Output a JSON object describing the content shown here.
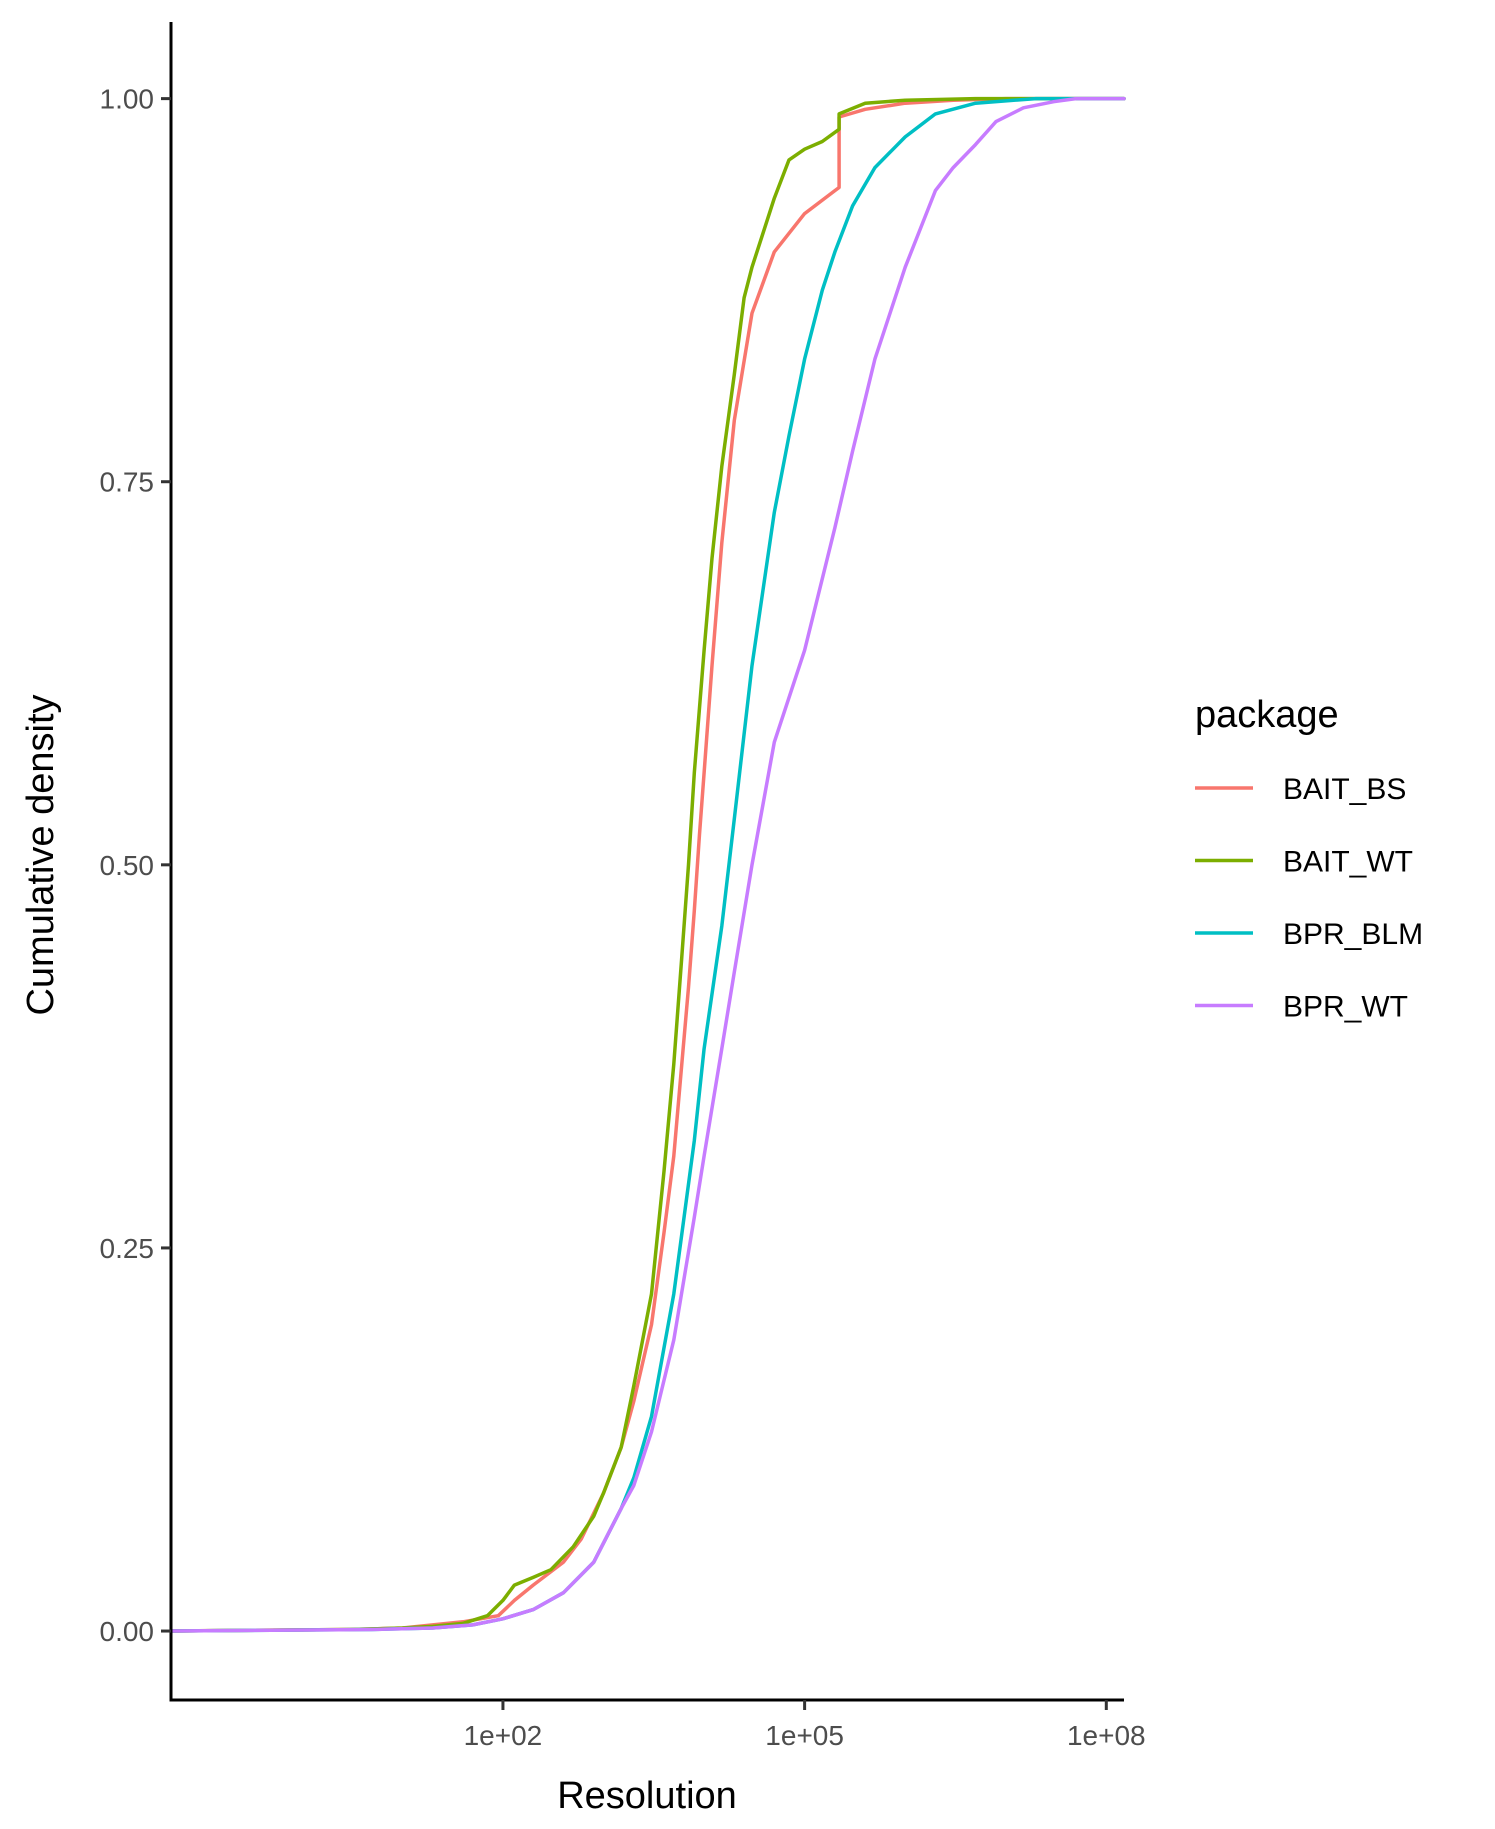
{
  "chart_data": {
    "type": "line",
    "xlabel": "Resolution",
    "ylabel": "Cumulative density",
    "x_scale": "log10",
    "xlim": [
      0.05,
      150000000
    ],
    "ylim": [
      -0.045,
      1.05
    ],
    "x_ticks": [
      {
        "value": 100,
        "label": "1e+02"
      },
      {
        "value": 100000,
        "label": "1e+05"
      },
      {
        "value": 100000000,
        "label": "1e+08"
      }
    ],
    "y_ticks": [
      {
        "value": 0,
        "label": "0.00"
      },
      {
        "value": 0.25,
        "label": "0.25"
      },
      {
        "value": 0.5,
        "label": "0.50"
      },
      {
        "value": 0.75,
        "label": "0.75"
      },
      {
        "value": 1,
        "label": "1.00"
      }
    ],
    "grid": false,
    "legend": {
      "title": "package",
      "position": "right"
    },
    "series": [
      {
        "name": "BAIT_BS",
        "color": "#F8766D",
        "points": [
          [
            0.05,
            0
          ],
          [
            3,
            0.001
          ],
          [
            10,
            0.002
          ],
          [
            20,
            0.004
          ],
          [
            40,
            0.006
          ],
          [
            60,
            0.008
          ],
          [
            90,
            0.01
          ],
          [
            130,
            0.02
          ],
          [
            200,
            0.03
          ],
          [
            400,
            0.045
          ],
          [
            600,
            0.06
          ],
          [
            1000,
            0.09
          ],
          [
            1500,
            0.12
          ],
          [
            2000,
            0.15
          ],
          [
            3000,
            0.2
          ],
          [
            4000,
            0.26
          ],
          [
            5000,
            0.31
          ],
          [
            6000,
            0.37
          ],
          [
            7000,
            0.42
          ],
          [
            8000,
            0.47
          ],
          [
            9000,
            0.52
          ],
          [
            10000,
            0.56
          ],
          [
            12000,
            0.63
          ],
          [
            15000,
            0.71
          ],
          [
            20000,
            0.79
          ],
          [
            30000,
            0.86
          ],
          [
            50000,
            0.9
          ],
          [
            100000,
            0.925
          ],
          [
            200000,
            0.94
          ],
          [
            220000,
            0.942
          ],
          [
            220001,
            0.988
          ],
          [
            400000,
            0.993
          ],
          [
            1000000,
            0.997
          ],
          [
            3000000,
            0.999
          ],
          [
            10000000,
            1
          ],
          [
            150000000,
            1
          ]
        ]
      },
      {
        "name": "BAIT_WT",
        "color": "#7CAE00",
        "points": [
          [
            0.05,
            0
          ],
          [
            3,
            0.001
          ],
          [
            10,
            0.002
          ],
          [
            20,
            0.003
          ],
          [
            40,
            0.005
          ],
          [
            70,
            0.01
          ],
          [
            100,
            0.02
          ],
          [
            130,
            0.03
          ],
          [
            200,
            0.035
          ],
          [
            300,
            0.04
          ],
          [
            500,
            0.055
          ],
          [
            800,
            0.075
          ],
          [
            1000,
            0.09
          ],
          [
            1500,
            0.12
          ],
          [
            2000,
            0.16
          ],
          [
            3000,
            0.22
          ],
          [
            4000,
            0.3
          ],
          [
            5000,
            0.37
          ],
          [
            6000,
            0.44
          ],
          [
            7000,
            0.5
          ],
          [
            8000,
            0.56
          ],
          [
            10000,
            0.64
          ],
          [
            12000,
            0.7
          ],
          [
            15000,
            0.76
          ],
          [
            20000,
            0.82
          ],
          [
            25000,
            0.87
          ],
          [
            30000,
            0.89
          ],
          [
            50000,
            0.935
          ],
          [
            70000,
            0.96
          ],
          [
            100000,
            0.967
          ],
          [
            150000,
            0.972
          ],
          [
            220000,
            0.98
          ],
          [
            220001,
            0.99
          ],
          [
            400000,
            0.997
          ],
          [
            1000000,
            0.999
          ],
          [
            5000000,
            1
          ],
          [
            150000000,
            1
          ]
        ]
      },
      {
        "name": "BPR_BLM",
        "color": "#00BFC4",
        "points": [
          [
            0.05,
            0
          ],
          [
            5,
            0.001
          ],
          [
            20,
            0.002
          ],
          [
            50,
            0.004
          ],
          [
            100,
            0.008
          ],
          [
            200,
            0.014
          ],
          [
            400,
            0.025
          ],
          [
            800,
            0.045
          ],
          [
            1500,
            0.08
          ],
          [
            2000,
            0.1
          ],
          [
            3000,
            0.14
          ],
          [
            5000,
            0.22
          ],
          [
            8000,
            0.32
          ],
          [
            10000,
            0.38
          ],
          [
            15000,
            0.46
          ],
          [
            20000,
            0.53
          ],
          [
            30000,
            0.63
          ],
          [
            50000,
            0.73
          ],
          [
            70000,
            0.78
          ],
          [
            100000,
            0.83
          ],
          [
            150000,
            0.875
          ],
          [
            200000,
            0.9
          ],
          [
            300000,
            0.93
          ],
          [
            500000,
            0.955
          ],
          [
            1000000,
            0.975
          ],
          [
            2000000,
            0.99
          ],
          [
            5000000,
            0.997
          ],
          [
            20000000,
            1
          ],
          [
            150000000,
            1
          ]
        ]
      },
      {
        "name": "BPR_WT",
        "color": "#C77CFF",
        "points": [
          [
            0.05,
            0
          ],
          [
            5,
            0.001
          ],
          [
            20,
            0.002
          ],
          [
            50,
            0.004
          ],
          [
            100,
            0.008
          ],
          [
            200,
            0.014
          ],
          [
            400,
            0.025
          ],
          [
            800,
            0.045
          ],
          [
            1500,
            0.08
          ],
          [
            2000,
            0.095
          ],
          [
            3000,
            0.13
          ],
          [
            5000,
            0.19
          ],
          [
            8000,
            0.27
          ],
          [
            10000,
            0.31
          ],
          [
            15000,
            0.38
          ],
          [
            20000,
            0.43
          ],
          [
            30000,
            0.5
          ],
          [
            50000,
            0.58
          ],
          [
            100000,
            0.64
          ],
          [
            200000,
            0.72
          ],
          [
            300000,
            0.77
          ],
          [
            500000,
            0.83
          ],
          [
            1000000,
            0.89
          ],
          [
            2000000,
            0.94
          ],
          [
            3000000,
            0.955
          ],
          [
            5000000,
            0.97
          ],
          [
            8000000,
            0.985
          ],
          [
            15000000,
            0.994
          ],
          [
            30000000,
            0.998
          ],
          [
            50000000,
            1
          ],
          [
            150000000,
            1
          ]
        ]
      }
    ]
  }
}
